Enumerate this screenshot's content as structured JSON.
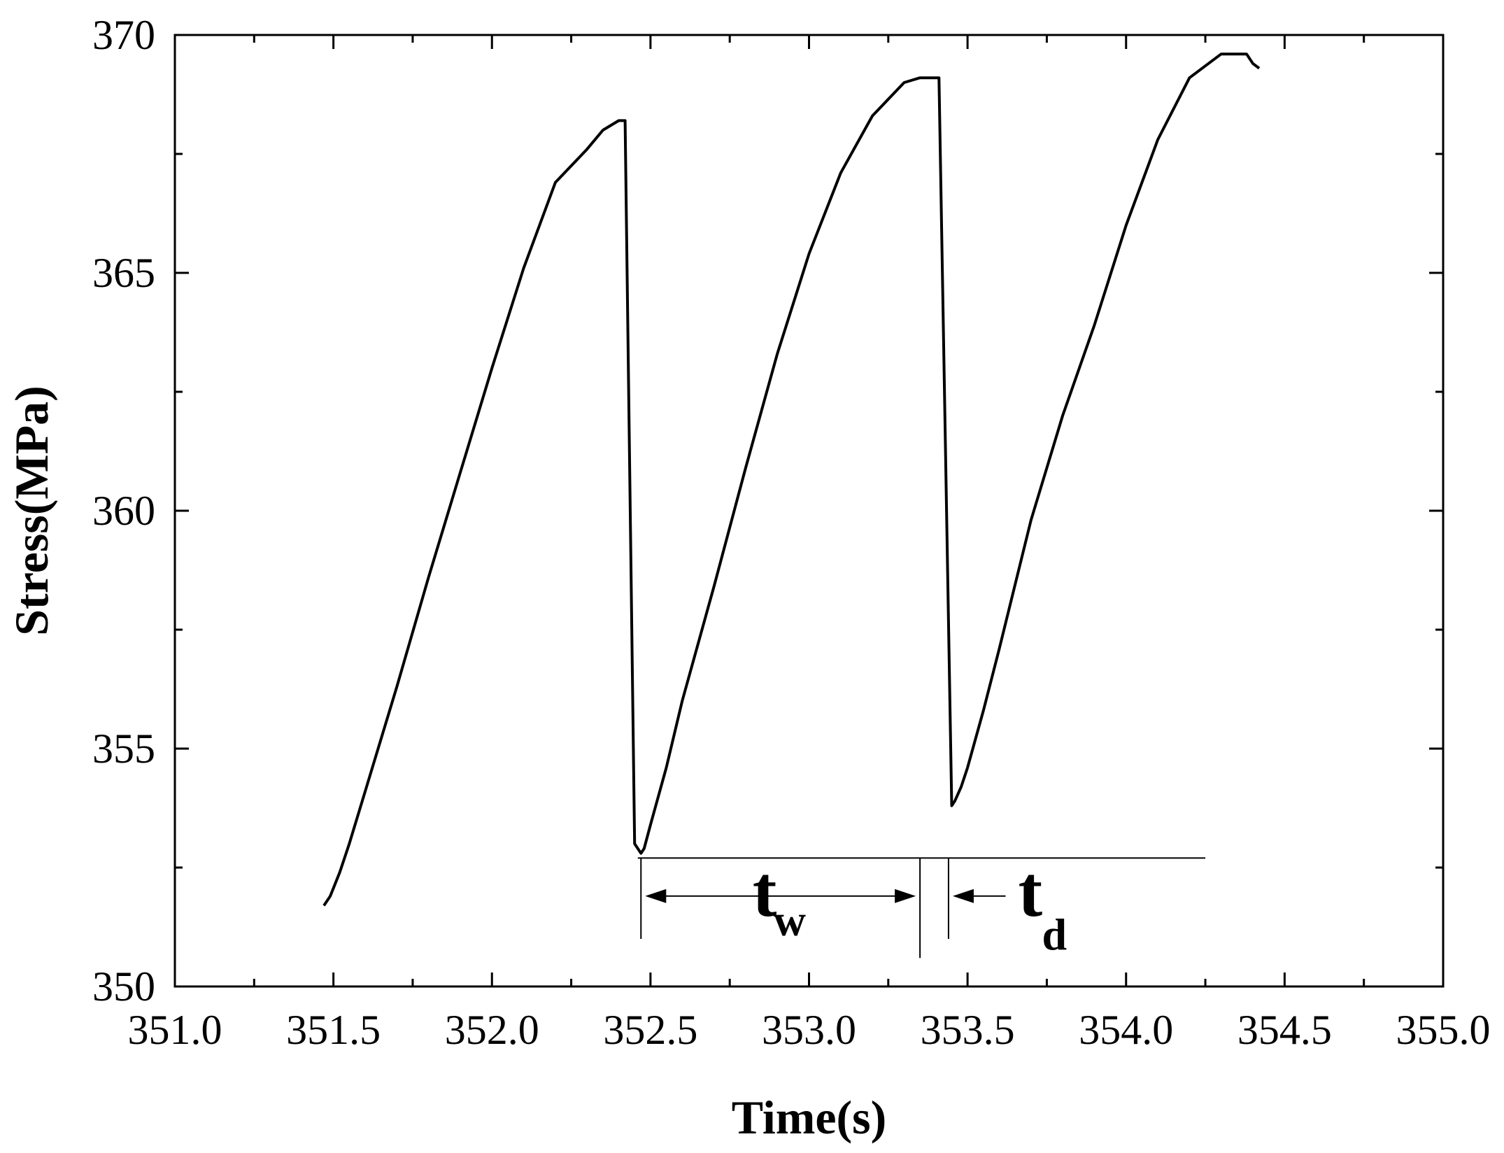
{
  "chart_data": {
    "type": "line",
    "title": "",
    "xlabel": "Time(s)",
    "ylabel": "Stress(MPa)",
    "xlim": [
      351.0,
      355.0
    ],
    "ylim": [
      350,
      370
    ],
    "x_ticks": [
      351.0,
      351.5,
      352.0,
      352.5,
      353.0,
      353.5,
      354.0,
      354.5,
      355.0
    ],
    "x_tick_labels": [
      "351.0",
      "351.5",
      "352.0",
      "352.5",
      "353.0",
      "353.5",
      "354.0",
      "354.5",
      "355.0"
    ],
    "y_ticks": [
      350,
      355,
      360,
      365,
      370
    ],
    "y_tick_labels": [
      "350",
      "355",
      "360",
      "365",
      "370"
    ],
    "grid": false,
    "legend": "none",
    "series": [
      {
        "color": "#000000",
        "x": [
          351.47,
          351.49,
          351.52,
          351.55,
          351.6,
          351.7,
          351.8,
          351.9,
          352.0,
          352.1,
          352.2,
          352.3,
          352.35,
          352.4,
          352.42,
          352.45,
          352.47,
          352.48,
          352.5,
          352.55,
          352.6,
          352.7,
          352.8,
          352.9,
          353.0,
          353.1,
          353.2,
          353.3,
          353.35,
          353.38,
          353.41,
          353.45,
          353.46,
          353.48,
          353.5,
          353.55,
          353.6,
          353.7,
          353.8,
          353.9,
          354.0,
          354.1,
          354.2,
          354.3,
          354.35,
          354.38,
          354.4,
          354.42
        ],
        "y": [
          351.7,
          351.9,
          352.4,
          353.0,
          354.1,
          356.3,
          358.6,
          360.8,
          363.0,
          365.1,
          366.9,
          367.6,
          368.0,
          368.2,
          368.2,
          353.0,
          352.8,
          352.9,
          353.4,
          354.6,
          356.0,
          358.4,
          360.9,
          363.3,
          365.4,
          367.1,
          368.3,
          369.0,
          369.1,
          369.1,
          369.1,
          353.8,
          353.9,
          354.2,
          354.6,
          355.8,
          357.1,
          359.8,
          362.0,
          363.9,
          366.0,
          367.8,
          369.1,
          369.6,
          369.6,
          369.6,
          369.4,
          369.3
        ]
      }
    ],
    "annotations": {
      "brace_lines": {
        "hline_y": 352.7,
        "hline_x": [
          352.46,
          354.25
        ],
        "verticals": [
          {
            "x": 352.47,
            "y": [
              351.0,
              352.7
            ]
          },
          {
            "x": 353.35,
            "y": [
              350.6,
              352.7
            ]
          },
          {
            "x": 353.44,
            "y": [
              351.0,
              352.7
            ]
          }
        ]
      },
      "tw": {
        "main": "t",
        "sub": "w",
        "x_from": 352.47,
        "x_to": 353.35,
        "y": 351.9
      },
      "td": {
        "main": "t",
        "sub": "d",
        "x_end": 353.44,
        "x_tail": 353.62,
        "y": 351.9
      }
    }
  }
}
